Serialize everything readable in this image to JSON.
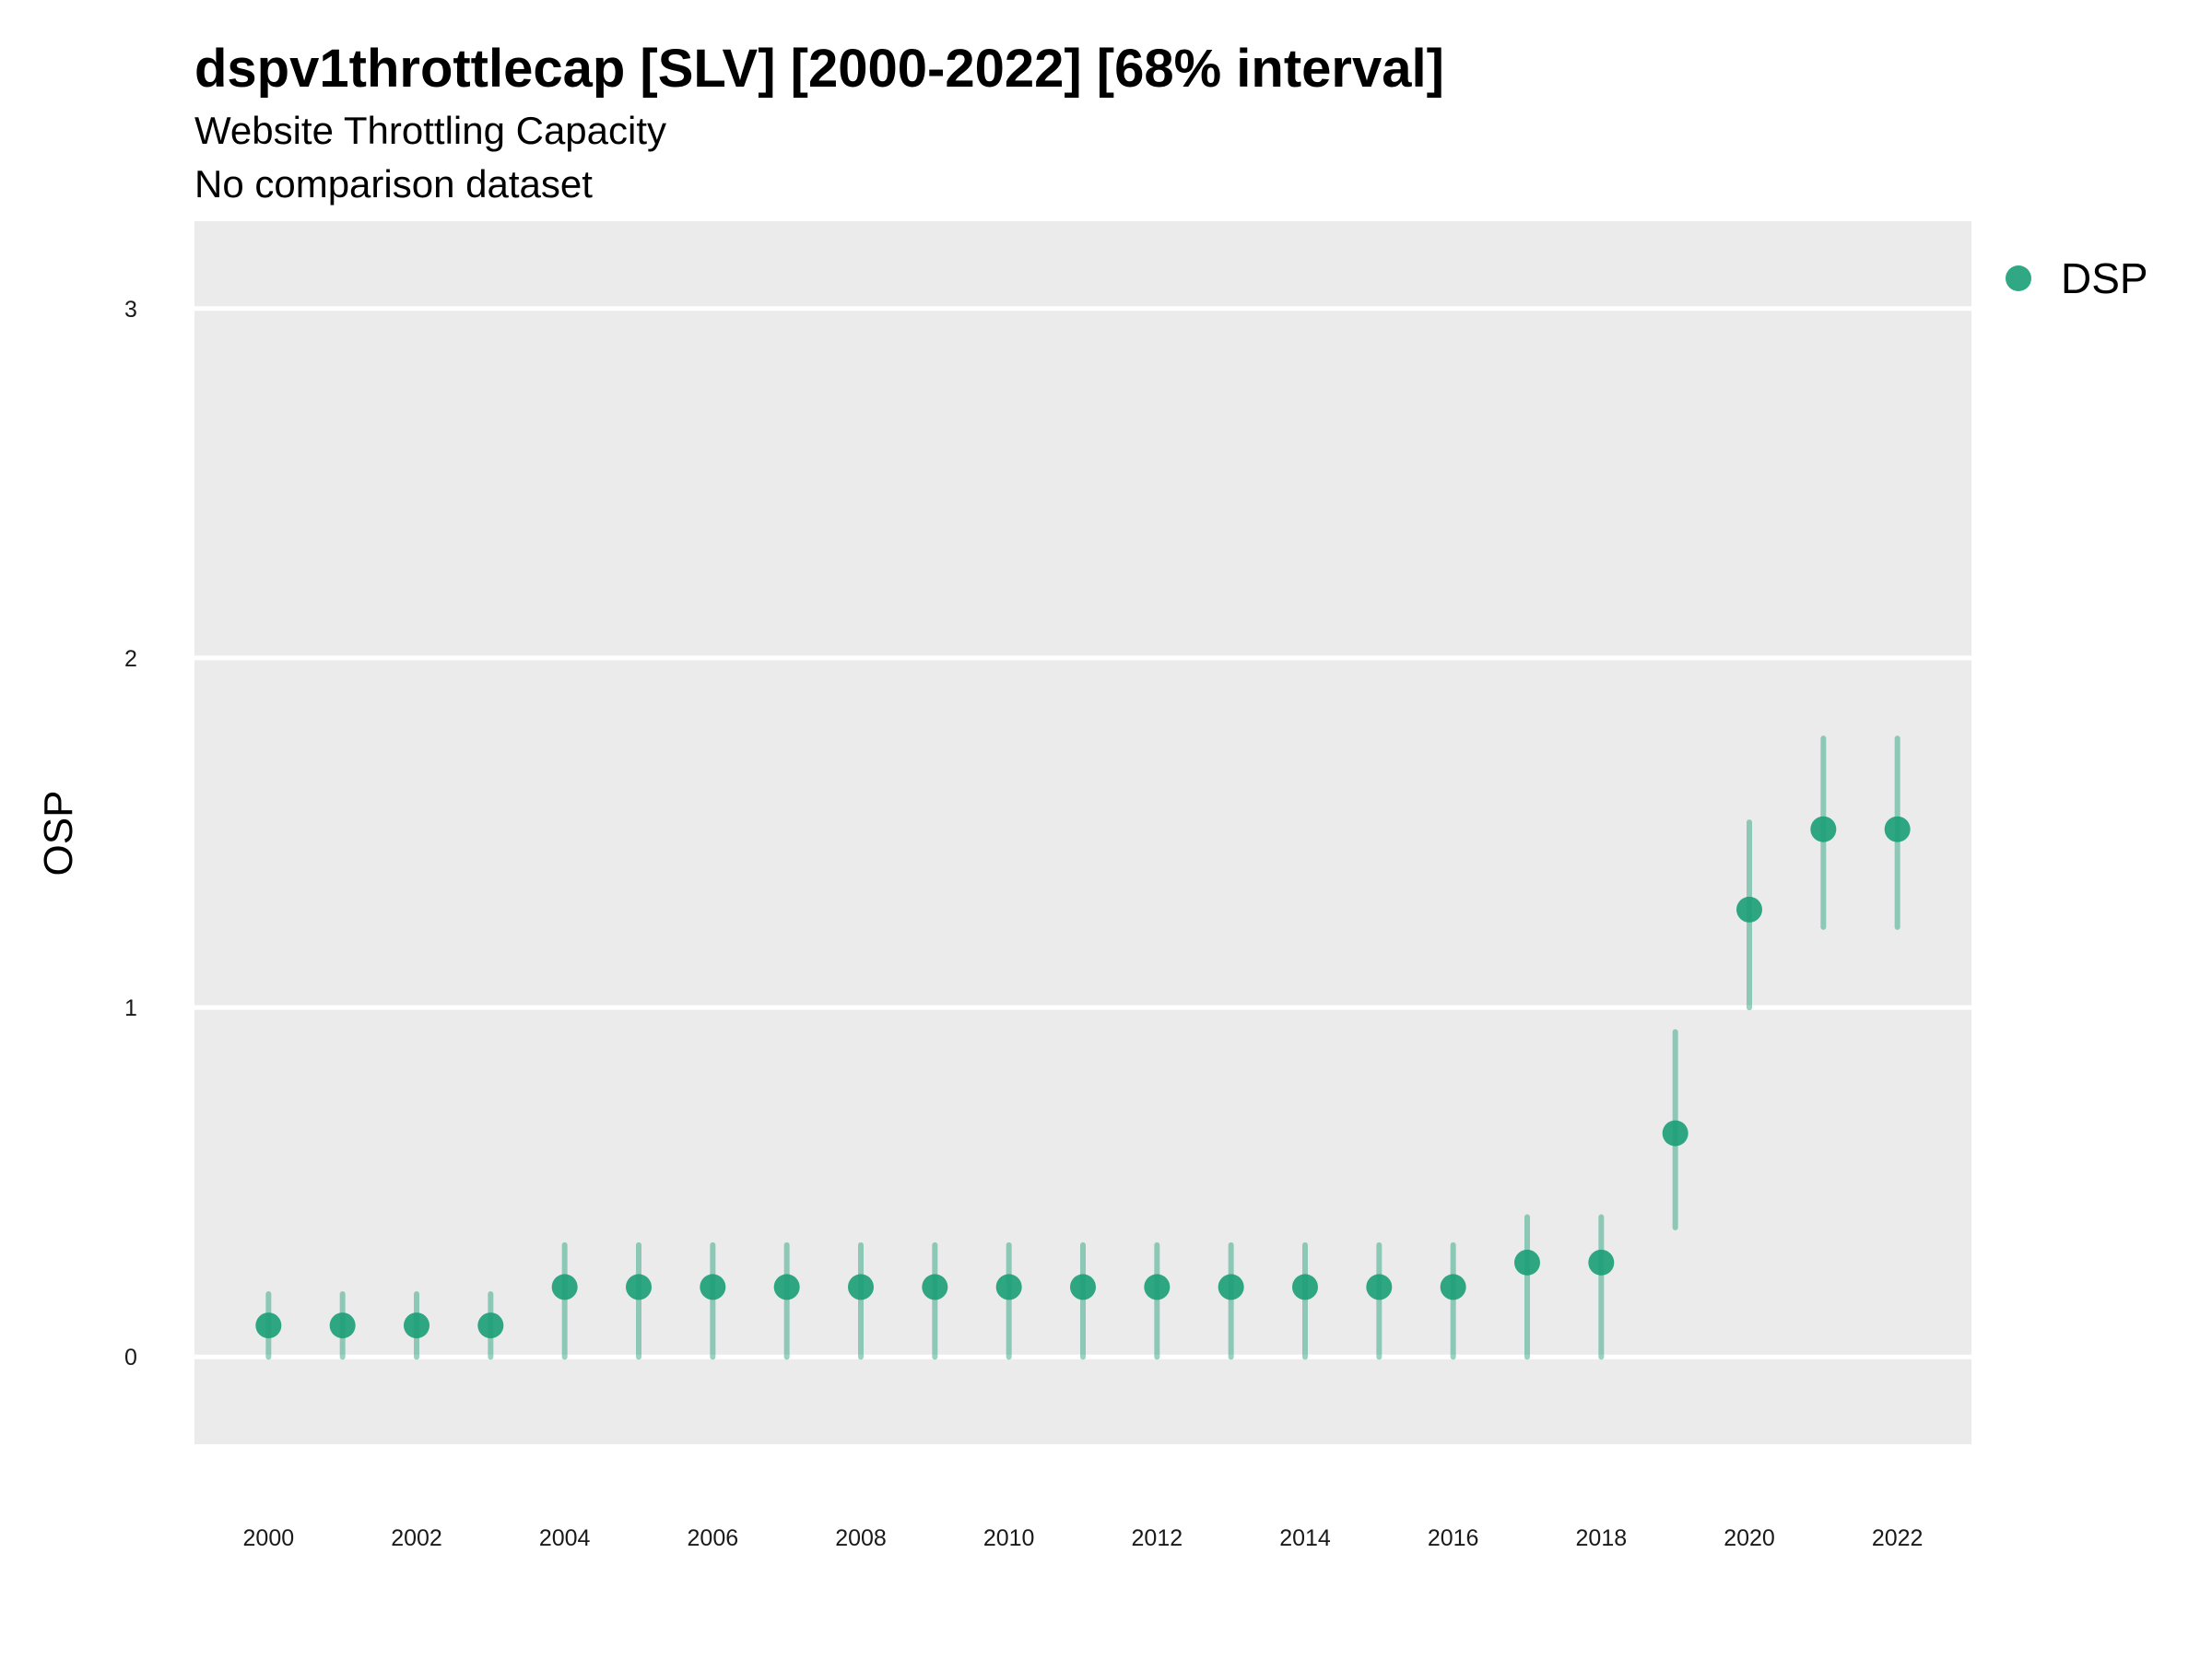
{
  "title": "dspv1throttlecap [SLV] [2000-2022] [68% interval]",
  "subtitle": "Website Throttling Capacity",
  "subtitle2": "No comparison dataset",
  "chart_data": {
    "type": "scatter",
    "ylabel": "OSP",
    "xlabel": "",
    "ylim": [
      -0.25,
      3.25
    ],
    "xlim": [
      1999,
      2023
    ],
    "y_ticks": [
      0,
      1,
      2,
      3
    ],
    "x_ticks": [
      2000,
      2002,
      2004,
      2006,
      2008,
      2010,
      2012,
      2014,
      2016,
      2018,
      2020,
      2022
    ],
    "grid": true,
    "legend_position": "top-right",
    "series": [
      {
        "name": "DSP",
        "color": "#1b9e77",
        "x": [
          2000,
          2001,
          2002,
          2003,
          2004,
          2005,
          2006,
          2007,
          2008,
          2009,
          2010,
          2011,
          2012,
          2013,
          2014,
          2015,
          2016,
          2017,
          2018,
          2019,
          2020,
          2021,
          2022
        ],
        "y": [
          0.09,
          0.09,
          0.09,
          0.09,
          0.2,
          0.2,
          0.2,
          0.2,
          0.2,
          0.2,
          0.2,
          0.2,
          0.2,
          0.2,
          0.2,
          0.2,
          0.2,
          0.27,
          0.27,
          0.64,
          1.28,
          1.51,
          1.51
        ],
        "lower": [
          0.0,
          0.0,
          0.0,
          0.0,
          0.0,
          0.0,
          0.0,
          0.0,
          0.0,
          0.0,
          0.0,
          0.0,
          0.0,
          0.0,
          0.0,
          0.0,
          0.0,
          0.0,
          0.0,
          0.37,
          1.0,
          1.23,
          1.23
        ],
        "upper": [
          0.18,
          0.18,
          0.18,
          0.18,
          0.32,
          0.32,
          0.32,
          0.32,
          0.32,
          0.32,
          0.32,
          0.32,
          0.32,
          0.32,
          0.32,
          0.32,
          0.32,
          0.4,
          0.4,
          0.93,
          1.53,
          1.77,
          1.77
        ]
      }
    ]
  }
}
